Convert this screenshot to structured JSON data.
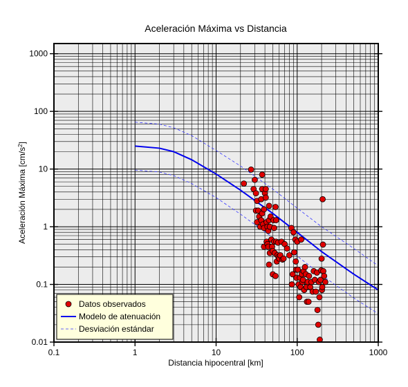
{
  "chart_data": {
    "type": "scatter",
    "title": "Aceleración Máxima vs Distancia",
    "xlabel": "Distancia hipocentral [km]",
    "ylabel_main": "Aceleración Máxima [cm/s",
    "ylabel_sup": "2",
    "ylabel_end": "]",
    "x_scale": "log",
    "y_scale": "log",
    "xlim": [
      0.1,
      1000
    ],
    "ylim": [
      0.01,
      1500
    ],
    "grid": true,
    "x_ticks": [
      {
        "v": 0.1,
        "label": "0.1"
      },
      {
        "v": 1,
        "label": "1"
      },
      {
        "v": 10,
        "label": "10"
      },
      {
        "v": 100,
        "label": "100"
      },
      {
        "v": 1000,
        "label": "1000"
      }
    ],
    "y_ticks": [
      {
        "v": 0.01,
        "label": "0.01"
      },
      {
        "v": 0.1,
        "label": "0.1"
      },
      {
        "v": 1,
        "label": "1"
      },
      {
        "v": 10,
        "label": "10"
      },
      {
        "v": 100,
        "label": "100"
      },
      {
        "v": 1000,
        "label": "1000"
      }
    ],
    "legend_position": "bottom-left",
    "colors": {
      "plot_bg": "#ececec",
      "observed_fill": "#e00000",
      "model_line": "#0000ee",
      "std_line": "#3333ff",
      "legend_bg": "#ffffdd"
    },
    "series": [
      {
        "name": "Datos observados",
        "kind": "points",
        "points": [
          [
            22,
            5.6
          ],
          [
            27,
            9.8
          ],
          [
            29,
            4.5
          ],
          [
            30,
            6.5
          ],
          [
            31,
            3.8
          ],
          [
            32,
            2.8
          ],
          [
            31,
            1.9
          ],
          [
            33,
            1.9
          ],
          [
            32,
            1.2
          ],
          [
            34,
            1.5
          ],
          [
            35,
            1.0
          ],
          [
            36,
            1.3
          ],
          [
            36,
            3.0
          ],
          [
            37,
            8.0
          ],
          [
            37,
            4.5
          ],
          [
            37,
            1.7
          ],
          [
            38,
            1.1
          ],
          [
            39,
            0.95
          ],
          [
            39,
            2.0
          ],
          [
            39,
            0.45
          ],
          [
            40,
            3.8
          ],
          [
            41,
            4.5
          ],
          [
            41,
            3.2
          ],
          [
            42,
            1.2
          ],
          [
            42,
            0.55
          ],
          [
            43,
            1.0
          ],
          [
            43,
            0.5
          ],
          [
            44,
            0.85
          ],
          [
            44,
            0.45
          ],
          [
            45,
            2.3
          ],
          [
            45,
            1.3
          ],
          [
            45,
            0.22
          ],
          [
            46,
            1.0
          ],
          [
            46,
            0.35
          ],
          [
            47,
            1.5
          ],
          [
            48,
            0.6
          ],
          [
            49,
            0.45
          ],
          [
            50,
            0.38
          ],
          [
            50,
            0.15
          ],
          [
            51,
            1.3
          ],
          [
            52,
            0.95
          ],
          [
            52,
            0.55
          ],
          [
            53,
            0.35
          ],
          [
            54,
            2.2
          ],
          [
            54,
            0.14
          ],
          [
            55,
            1.3
          ],
          [
            55,
            0.55
          ],
          [
            56,
            0.25
          ],
          [
            57,
            0.32
          ],
          [
            58,
            0.53
          ],
          [
            59,
            0.3
          ],
          [
            60,
            0.28
          ],
          [
            62,
            0.32
          ],
          [
            64,
            0.55
          ],
          [
            66,
            0.27
          ],
          [
            68,
            0.28
          ],
          [
            70,
            0.5
          ],
          [
            75,
            0.42
          ],
          [
            80,
            0.32
          ],
          [
            85,
            0.95
          ],
          [
            86,
            0.1
          ],
          [
            88,
            0.15
          ],
          [
            90,
            0.8
          ],
          [
            92,
            0.36
          ],
          [
            95,
            0.6
          ],
          [
            96,
            0.25
          ],
          [
            97,
            0.18
          ],
          [
            98,
            0.13
          ],
          [
            100,
            0.55
          ],
          [
            102,
            0.18
          ],
          [
            104,
            0.1
          ],
          [
            106,
            0.06
          ],
          [
            108,
            0.13
          ],
          [
            110,
            0.09
          ],
          [
            112,
            0.6
          ],
          [
            114,
            0.15
          ],
          [
            116,
            0.11
          ],
          [
            118,
            0.12
          ],
          [
            120,
            0.17
          ],
          [
            122,
            0.08
          ],
          [
            125,
            0.2
          ],
          [
            128,
            0.15
          ],
          [
            130,
            0.09
          ],
          [
            132,
            0.05
          ],
          [
            135,
            0.11
          ],
          [
            138,
            0.05
          ],
          [
            140,
            0.14
          ],
          [
            145,
            0.09
          ],
          [
            150,
            0.11
          ],
          [
            155,
            0.075
          ],
          [
            160,
            0.17
          ],
          [
            165,
            0.12
          ],
          [
            170,
            0.075
          ],
          [
            175,
            0.16
          ],
          [
            178,
            0.036
          ],
          [
            182,
            0.02
          ],
          [
            185,
            0.11
          ],
          [
            188,
            0.06
          ],
          [
            190,
            0.011
          ],
          [
            194,
            0.12
          ],
          [
            198,
            0.175
          ],
          [
            200,
            0.28
          ],
          [
            202,
            0.08
          ],
          [
            204,
            0.09
          ],
          [
            206,
            3.0
          ],
          [
            208,
            0.49
          ],
          [
            210,
            0.17
          ],
          [
            215,
            0.14
          ],
          [
            222,
            0.11
          ]
        ]
      },
      {
        "name": "Modelo de atenuación",
        "kind": "line",
        "points": [
          [
            1,
            25
          ],
          [
            2,
            23
          ],
          [
            3,
            20
          ],
          [
            5,
            14.5
          ],
          [
            10,
            8.2
          ],
          [
            20,
            4.3
          ],
          [
            50,
            1.7
          ],
          [
            100,
            0.8
          ],
          [
            200,
            0.37
          ],
          [
            500,
            0.15
          ],
          [
            1000,
            0.08
          ]
        ]
      },
      {
        "name": "Desviación estándar",
        "kind": "dashed",
        "points": [
          [
            1,
            65
          ],
          [
            2,
            60
          ],
          [
            3,
            52
          ],
          [
            5,
            38
          ],
          [
            10,
            21
          ],
          [
            20,
            11.3
          ],
          [
            50,
            4.5
          ],
          [
            100,
            2.1
          ],
          [
            200,
            1.0
          ],
          [
            500,
            0.42
          ],
          [
            1000,
            0.21
          ]
        ]
      },
      {
        "name": "Desviación estándar",
        "kind": "dashed",
        "points": [
          [
            1,
            9.6
          ],
          [
            2,
            8.9
          ],
          [
            3,
            7.7
          ],
          [
            5,
            5.6
          ],
          [
            10,
            3.2
          ],
          [
            20,
            1.65
          ],
          [
            50,
            0.65
          ],
          [
            100,
            0.31
          ],
          [
            200,
            0.145
          ],
          [
            500,
            0.058
          ],
          [
            1000,
            0.031
          ]
        ]
      }
    ],
    "legend": [
      {
        "label": "Datos observados",
        "kind": "points"
      },
      {
        "label": "Modelo de atenuación",
        "kind": "line"
      },
      {
        "label": "Desviación estándar",
        "kind": "dashed"
      }
    ]
  }
}
